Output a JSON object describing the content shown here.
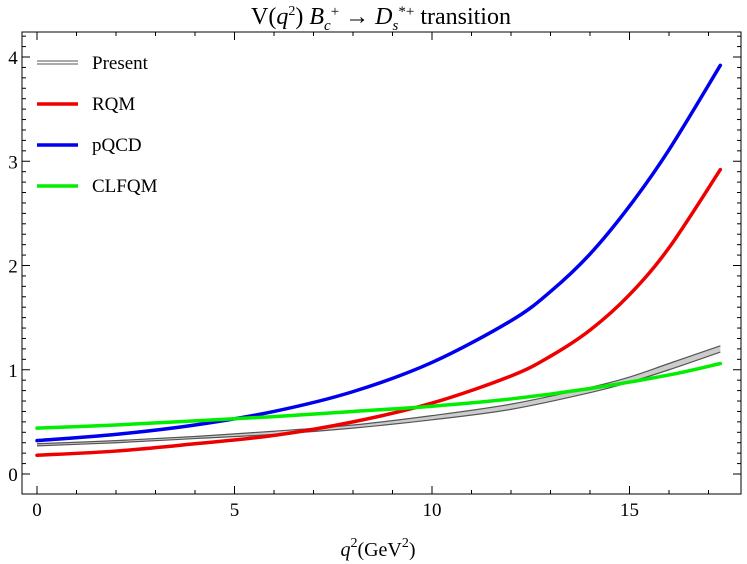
{
  "chart_data": {
    "type": "line",
    "title": "V(q²) B_c⁺ → D_s*⁺ transition",
    "title_parts": {
      "prefix": "V(",
      "var": "q",
      "sup": "2",
      "mid": ") ",
      "b": "B",
      "b_sub": "c",
      "b_sup": "+",
      "arrow": " → ",
      "d": "D",
      "d_sub": "s",
      "d_sup": "*+",
      "suffix": " transition"
    },
    "xlabel": "q²(GeV²)",
    "xlabel_parts": {
      "var": "q",
      "sup": "2",
      "unit_open": "(GeV",
      "unit_sup": "2",
      "unit_close": ")"
    },
    "ylabel": "",
    "xlim": [
      0,
      17.6
    ],
    "ylim": [
      -0.05,
      4.2
    ],
    "xticks": [
      0,
      5,
      10,
      15
    ],
    "yticks": [
      0,
      1,
      2,
      3,
      4
    ],
    "grid": false,
    "legend_position": "top-left",
    "series": [
      {
        "name": "Present",
        "color": "#555555",
        "band": true,
        "x": [
          0,
          2,
          4,
          6,
          8,
          10,
          12,
          14,
          15,
          16,
          17.3
        ],
        "lower": [
          0.27,
          0.3,
          0.34,
          0.38,
          0.44,
          0.52,
          0.62,
          0.78,
          0.88,
          1.0,
          1.17
        ],
        "upper": [
          0.29,
          0.32,
          0.36,
          0.41,
          0.47,
          0.56,
          0.67,
          0.83,
          0.93,
          1.06,
          1.23
        ]
      },
      {
        "name": "RQM",
        "color": "#ee0000",
        "x": [
          0,
          2,
          4,
          6,
          8,
          10,
          12,
          13,
          14,
          15,
          16,
          17.3
        ],
        "values": [
          0.18,
          0.22,
          0.29,
          0.37,
          0.5,
          0.68,
          0.94,
          1.13,
          1.38,
          1.72,
          2.17,
          2.92
        ]
      },
      {
        "name": "pQCD",
        "color": "#0000ee",
        "x": [
          0,
          2,
          4,
          6,
          8,
          10,
          12,
          13,
          14,
          15,
          16,
          17.3
        ],
        "values": [
          0.32,
          0.38,
          0.47,
          0.6,
          0.79,
          1.07,
          1.47,
          1.75,
          2.11,
          2.57,
          3.11,
          3.92
        ]
      },
      {
        "name": "CLFQM",
        "color": "#00ee00",
        "x": [
          0,
          2,
          4,
          6,
          8,
          10,
          12,
          14,
          16,
          17.3
        ],
        "values": [
          0.44,
          0.47,
          0.51,
          0.55,
          0.6,
          0.65,
          0.72,
          0.82,
          0.95,
          1.06
        ]
      }
    ]
  }
}
